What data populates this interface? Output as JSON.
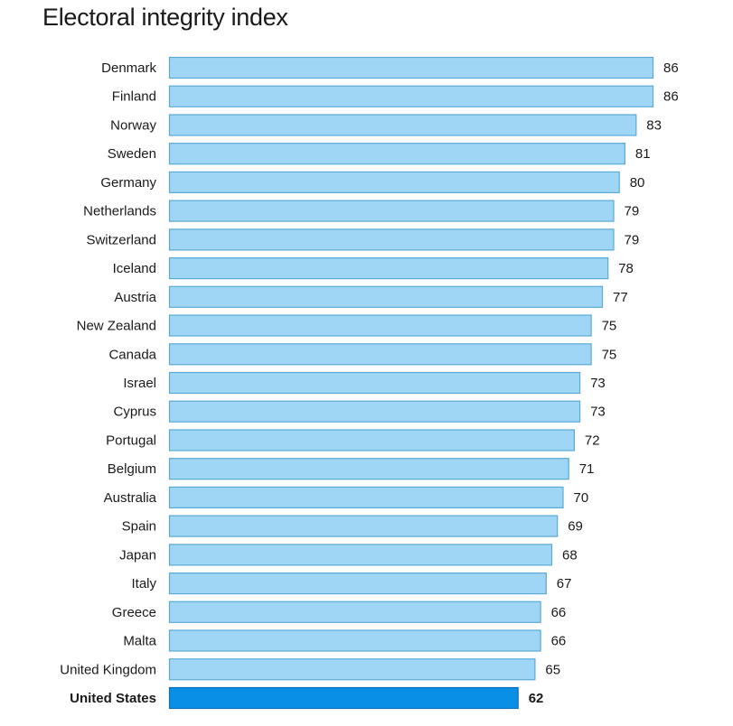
{
  "chart_data": {
    "type": "bar",
    "orientation": "horizontal",
    "title": "Electoral integrity index",
    "categories": [
      "Denmark",
      "Finland",
      "Norway",
      "Sweden",
      "Germany",
      "Netherlands",
      "Switzerland",
      "Iceland",
      "Austria",
      "New Zealand",
      "Canada",
      "Israel",
      "Cyprus",
      "Portugal",
      "Belgium",
      "Australia",
      "Spain",
      "Japan",
      "Italy",
      "Greece",
      "Malta",
      "United Kingdom",
      "United States"
    ],
    "values": [
      86,
      86,
      83,
      81,
      80,
      79,
      79,
      78,
      77,
      75,
      75,
      73,
      73,
      72,
      71,
      70,
      69,
      68,
      67,
      66,
      66,
      65,
      62
    ],
    "highlight": "United States",
    "colors": {
      "bar": "#9fd6f5",
      "bar_border": "#5aa9d6",
      "highlight_bar": "#0a8fe6",
      "highlight_border": "#0a6fb8"
    },
    "xlim": [
      0,
      86
    ],
    "grid": false,
    "legend": "none"
  }
}
